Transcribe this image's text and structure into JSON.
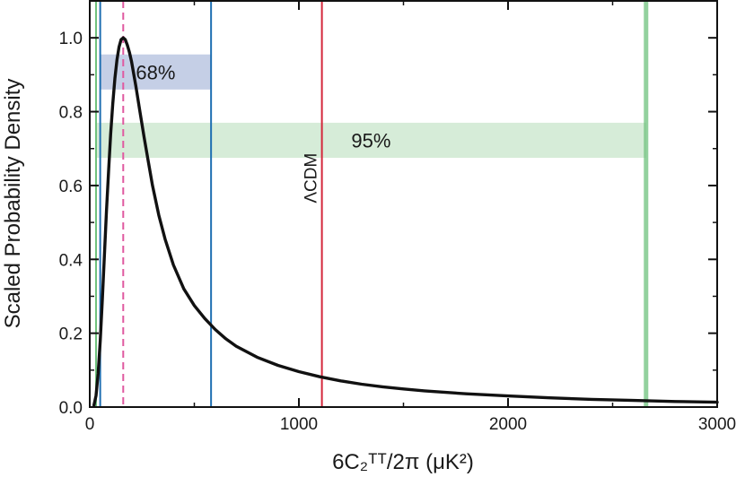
{
  "chart_data": {
    "type": "line",
    "title": "",
    "xlabel": "6C₂ᵀᵀ/2π (μK²)",
    "ylabel": "Scaled Probability Density",
    "xlim": [
      0,
      3000
    ],
    "ylim": [
      0,
      1.1
    ],
    "x_ticks": [
      0,
      1000,
      2000,
      3000
    ],
    "x_tick_labels": [
      "0",
      "1000",
      "2000",
      "3000"
    ],
    "y_ticks": [
      0.0,
      0.2,
      0.4,
      0.6,
      0.8,
      1.0
    ],
    "y_tick_labels": [
      "0.0",
      "0.2",
      "0.4",
      "0.6",
      "0.8",
      "1.0"
    ],
    "grid": false,
    "series": [
      {
        "x": [
          20,
          30,
          40,
          50,
          60,
          70,
          80,
          90,
          100,
          110,
          120,
          130,
          140,
          150,
          160,
          170,
          180,
          190,
          200,
          220,
          240,
          260,
          280,
          300,
          330,
          360,
          400,
          450,
          500,
          550,
          600,
          650,
          700,
          800,
          900,
          1000,
          1100,
          1200,
          1300,
          1400,
          1500,
          1600,
          1800,
          2000,
          2200,
          2400,
          2600,
          2800,
          3000
        ],
        "values": [
          0.005,
          0.031,
          0.09,
          0.18,
          0.29,
          0.41,
          0.53,
          0.64,
          0.74,
          0.82,
          0.89,
          0.94,
          0.975,
          0.995,
          1.0,
          0.995,
          0.98,
          0.96,
          0.935,
          0.87,
          0.8,
          0.73,
          0.665,
          0.6,
          0.52,
          0.455,
          0.385,
          0.32,
          0.275,
          0.24,
          0.21,
          0.185,
          0.165,
          0.135,
          0.113,
          0.096,
          0.082,
          0.071,
          0.062,
          0.055,
          0.049,
          0.044,
          0.036,
          0.03,
          0.025,
          0.021,
          0.018,
          0.015,
          0.013
        ],
        "color": "#111111"
      }
    ],
    "bands": [
      {
        "label": "68%",
        "x_from": 50,
        "x_to": 580,
        "y_from": 0.86,
        "y_to": 0.955,
        "color": "#c5cfe6"
      },
      {
        "label": "95%",
        "x_from": 30,
        "x_to": 2660,
        "y_from": 0.675,
        "y_to": 0.77,
        "color": "#d6ecd8"
      }
    ],
    "vlines": [
      {
        "x": 50,
        "color": "#1f6fb2",
        "style": "solid"
      },
      {
        "x": 580,
        "color": "#1f6fb2",
        "style": "solid"
      },
      {
        "x": 160,
        "color": "#e05aa0",
        "style": "dashed"
      },
      {
        "x": 1110,
        "color": "#d4283c",
        "style": "solid",
        "label": "ΛCDM"
      },
      {
        "x": 2660,
        "color": "#6fc27d",
        "style": "solid"
      },
      {
        "x": 30,
        "color": "#6fc27d",
        "style": "solid"
      }
    ]
  }
}
